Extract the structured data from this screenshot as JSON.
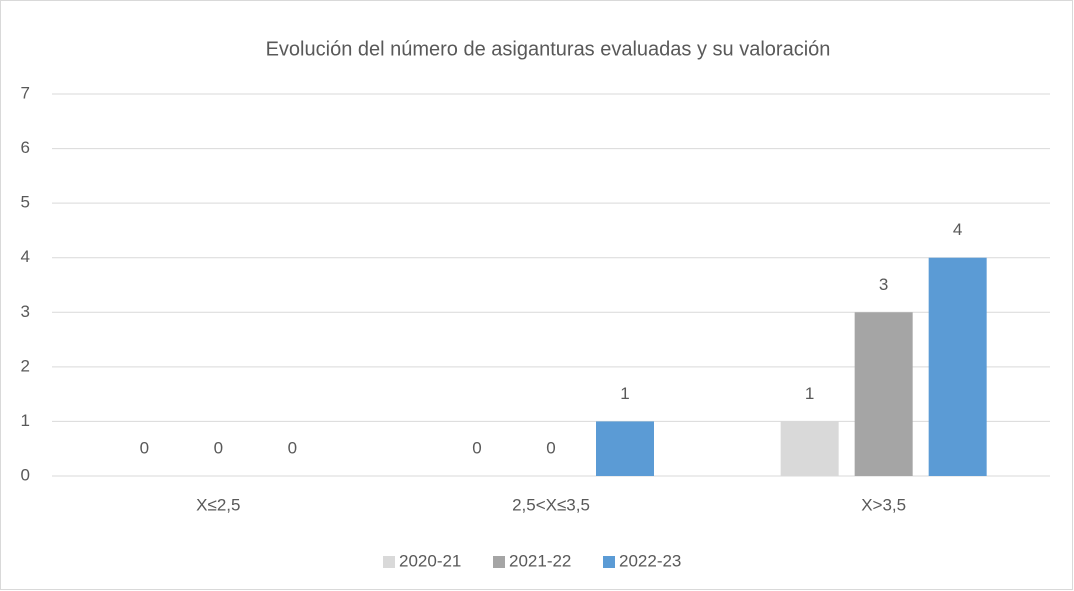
{
  "chart_data": {
    "type": "bar",
    "title": "Evolución del número de asiganturas evaluadas y su valoración",
    "categories": [
      "X≤2,5",
      "2,5<X≤3,5",
      "X>3,5"
    ],
    "series": [
      {
        "name": "2020-21",
        "color": "#d9d9d9",
        "values": [
          0,
          0,
          1
        ]
      },
      {
        "name": "2021-22",
        "color": "#a5a5a5",
        "values": [
          0,
          0,
          3
        ]
      },
      {
        "name": "2022-23",
        "color": "#5b9bd5",
        "values": [
          0,
          1,
          4
        ]
      }
    ],
    "ylim": [
      0,
      7
    ],
    "yticks": [
      0,
      1,
      2,
      3,
      4,
      5,
      6,
      7
    ],
    "grid": true,
    "legend": "bottom"
  }
}
